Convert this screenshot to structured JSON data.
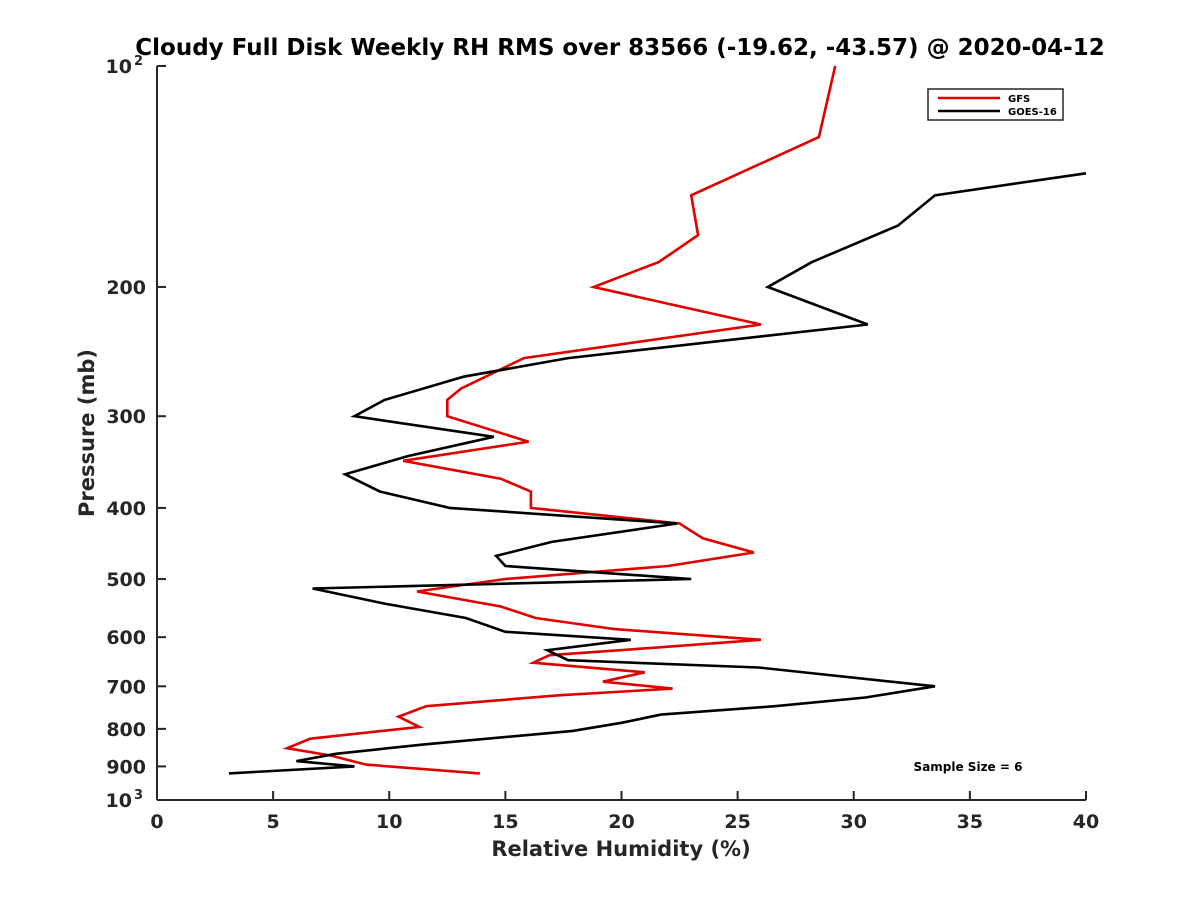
{
  "chart_data": {
    "type": "line",
    "title": "Cloudy Full Disk Weekly RH RMS over 83566 (-19.62, -43.57) @ 2020-04-12",
    "xlabel": "Relative Humidity (%)",
    "ylabel": "Pressure (mb)",
    "xlim": [
      0,
      40
    ],
    "ylim": [
      1000,
      100
    ],
    "y_scale": "log",
    "y_reversed": true,
    "x_ticks": [
      "0",
      "5",
      "10",
      "15",
      "20",
      "25",
      "30",
      "35",
      "40"
    ],
    "y_ticks": [
      {
        "value": 100,
        "label": "10",
        "sup": "2"
      },
      {
        "value": 200,
        "label": "200",
        "sup": ""
      },
      {
        "value": 300,
        "label": "300",
        "sup": ""
      },
      {
        "value": 400,
        "label": "400",
        "sup": ""
      },
      {
        "value": 500,
        "label": "500",
        "sup": ""
      },
      {
        "value": 600,
        "label": "600",
        "sup": ""
      },
      {
        "value": 700,
        "label": "700",
        "sup": ""
      },
      {
        "value": 800,
        "label": "800",
        "sup": ""
      },
      {
        "value": 900,
        "label": "900",
        "sup": ""
      },
      {
        "value": 1000,
        "label": "10",
        "sup": "3"
      }
    ],
    "grid": false,
    "legend_position": "top-right",
    "annotation": "Sample Size = 6",
    "series": [
      {
        "name": "GFS",
        "color": "#e00000",
        "points": [
          [
            29.2,
            100
          ],
          [
            28.5,
            125
          ],
          [
            23.0,
            150
          ],
          [
            23.3,
            170
          ],
          [
            21.6,
            185
          ],
          [
            18.8,
            200
          ],
          [
            26.0,
            225
          ],
          [
            15.8,
            250
          ],
          [
            13.1,
            275
          ],
          [
            12.5,
            285
          ],
          [
            12.5,
            300
          ],
          [
            16.0,
            325
          ],
          [
            10.6,
            345
          ],
          [
            14.8,
            365
          ],
          [
            16.1,
            380
          ],
          [
            16.1,
            400
          ],
          [
            22.5,
            420
          ],
          [
            23.5,
            440
          ],
          [
            25.7,
            460
          ],
          [
            22.0,
            480
          ],
          [
            15.0,
            500
          ],
          [
            11.2,
            520
          ],
          [
            14.8,
            545
          ],
          [
            16.3,
            565
          ],
          [
            19.7,
            585
          ],
          [
            26.0,
            605
          ],
          [
            21.5,
            620
          ],
          [
            16.9,
            635
          ],
          [
            16.2,
            650
          ],
          [
            21.0,
            670
          ],
          [
            19.2,
            690
          ],
          [
            22.2,
            705
          ],
          [
            17.3,
            720
          ],
          [
            11.6,
            745
          ],
          [
            10.4,
            770
          ],
          [
            11.3,
            795
          ],
          [
            6.6,
            825
          ],
          [
            5.6,
            850
          ],
          [
            7.5,
            870
          ],
          [
            9.0,
            895
          ],
          [
            13.9,
            920
          ]
        ]
      },
      {
        "name": "GOES-16",
        "color": "#000000",
        "points": [
          [
            40.0,
            140
          ],
          [
            33.5,
            150
          ],
          [
            31.9,
            165
          ],
          [
            28.2,
            185
          ],
          [
            26.3,
            200
          ],
          [
            30.6,
            225
          ],
          [
            17.7,
            250
          ],
          [
            13.2,
            265
          ],
          [
            9.8,
            285
          ],
          [
            8.5,
            300
          ],
          [
            14.5,
            320
          ],
          [
            10.8,
            340
          ],
          [
            8.1,
            360
          ],
          [
            9.6,
            380
          ],
          [
            12.6,
            400
          ],
          [
            22.4,
            420
          ],
          [
            17.0,
            445
          ],
          [
            14.6,
            465
          ],
          [
            15.0,
            480
          ],
          [
            23.0,
            500
          ],
          [
            6.7,
            515
          ],
          [
            9.8,
            540
          ],
          [
            13.3,
            565
          ],
          [
            15.0,
            590
          ],
          [
            20.4,
            605
          ],
          [
            16.8,
            625
          ],
          [
            17.7,
            645
          ],
          [
            25.9,
            660
          ],
          [
            33.5,
            700
          ],
          [
            30.5,
            725
          ],
          [
            26.6,
            745
          ],
          [
            21.7,
            765
          ],
          [
            20.0,
            785
          ],
          [
            17.9,
            805
          ],
          [
            11.5,
            840
          ],
          [
            7.7,
            865
          ],
          [
            6.0,
            885
          ],
          [
            8.5,
            900
          ],
          [
            3.1,
            920
          ]
        ]
      }
    ]
  }
}
